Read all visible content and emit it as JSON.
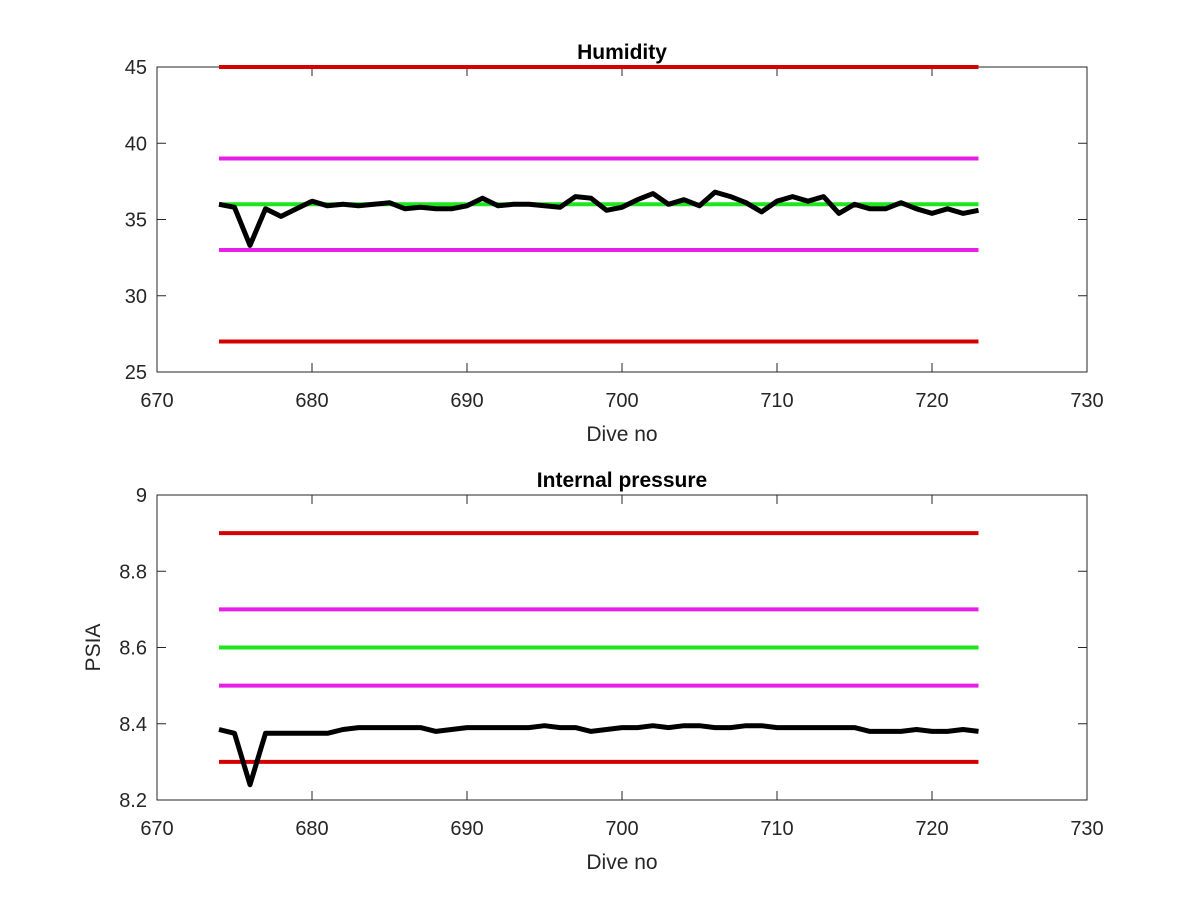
{
  "chart_data": [
    {
      "type": "line",
      "title": "Humidity",
      "xlabel": "Dive no",
      "ylabel": "",
      "xlim": [
        670,
        730
      ],
      "ylim": [
        25,
        45
      ],
      "xticks": [
        670,
        680,
        690,
        700,
        710,
        720,
        730
      ],
      "yticks": [
        25,
        30,
        35,
        40,
        45
      ],
      "grid": false,
      "series": [
        {
          "x": [
            674,
            723
          ],
          "values": [
            45,
            45
          ],
          "color": "#d40000"
        },
        {
          "x": [
            674,
            723
          ],
          "values": [
            39,
            39
          ],
          "color": "#e61ee6"
        },
        {
          "x": [
            674,
            723
          ],
          "values": [
            36,
            36
          ],
          "color": "#1ee61e"
        },
        {
          "x": [
            674,
            723
          ],
          "values": [
            33,
            33
          ],
          "color": "#e61ee6"
        },
        {
          "x": [
            674,
            723
          ],
          "values": [
            27,
            27
          ],
          "color": "#d40000"
        },
        {
          "x": [
            674,
            675,
            676,
            677,
            678,
            679,
            680,
            681,
            682,
            683,
            684,
            685,
            686,
            687,
            688,
            689,
            690,
            691,
            692,
            693,
            694,
            695,
            696,
            697,
            698,
            699,
            700,
            701,
            702,
            703,
            704,
            705,
            706,
            707,
            708,
            709,
            710,
            711,
            712,
            713,
            714,
            715,
            716,
            717,
            718,
            719,
            720,
            721,
            722,
            723
          ],
          "values": [
            36.0,
            35.8,
            33.3,
            35.7,
            35.2,
            35.7,
            36.2,
            35.9,
            36.0,
            35.9,
            36.0,
            36.1,
            35.7,
            35.8,
            35.7,
            35.7,
            35.9,
            36.4,
            35.9,
            36.0,
            36.0,
            35.9,
            35.8,
            36.5,
            36.4,
            35.6,
            35.8,
            36.3,
            36.7,
            36.0,
            36.3,
            35.9,
            36.8,
            36.5,
            36.1,
            35.5,
            36.2,
            36.5,
            36.2,
            36.5,
            35.4,
            36.0,
            35.7,
            35.7,
            36.1,
            35.7,
            35.4,
            35.7,
            35.4,
            35.6
          ],
          "color": "#000000"
        }
      ]
    },
    {
      "type": "line",
      "title": "Internal pressure",
      "xlabel": "Dive no",
      "ylabel": "PSIA",
      "xlim": [
        670,
        730
      ],
      "ylim": [
        8.2,
        9
      ],
      "xticks": [
        670,
        680,
        690,
        700,
        710,
        720,
        730
      ],
      "yticks": [
        8.2,
        8.4,
        8.6,
        8.8,
        9
      ],
      "grid": false,
      "series": [
        {
          "x": [
            674,
            723
          ],
          "values": [
            8.9,
            8.9
          ],
          "color": "#d40000"
        },
        {
          "x": [
            674,
            723
          ],
          "values": [
            8.7,
            8.7
          ],
          "color": "#e61ee6"
        },
        {
          "x": [
            674,
            723
          ],
          "values": [
            8.6,
            8.6
          ],
          "color": "#1ee61e"
        },
        {
          "x": [
            674,
            723
          ],
          "values": [
            8.5,
            8.5
          ],
          "color": "#e61ee6"
        },
        {
          "x": [
            674,
            723
          ],
          "values": [
            8.3,
            8.3
          ],
          "color": "#d40000"
        },
        {
          "x": [
            674,
            675,
            676,
            677,
            678,
            679,
            680,
            681,
            682,
            683,
            684,
            685,
            686,
            687,
            688,
            689,
            690,
            691,
            692,
            693,
            694,
            695,
            696,
            697,
            698,
            699,
            700,
            701,
            702,
            703,
            704,
            705,
            706,
            707,
            708,
            709,
            710,
            711,
            712,
            713,
            714,
            715,
            716,
            717,
            718,
            719,
            720,
            721,
            722,
            723
          ],
          "values": [
            8.385,
            8.375,
            8.24,
            8.375,
            8.375,
            8.375,
            8.375,
            8.375,
            8.385,
            8.39,
            8.39,
            8.39,
            8.39,
            8.39,
            8.38,
            8.385,
            8.39,
            8.39,
            8.39,
            8.39,
            8.39,
            8.395,
            8.39,
            8.39,
            8.38,
            8.385,
            8.39,
            8.39,
            8.395,
            8.39,
            8.395,
            8.395,
            8.39,
            8.39,
            8.395,
            8.395,
            8.39,
            8.39,
            8.39,
            8.39,
            8.39,
            8.39,
            8.38,
            8.38,
            8.38,
            8.385,
            8.38,
            8.38,
            8.385,
            8.38
          ],
          "color": "#000000"
        }
      ]
    }
  ]
}
